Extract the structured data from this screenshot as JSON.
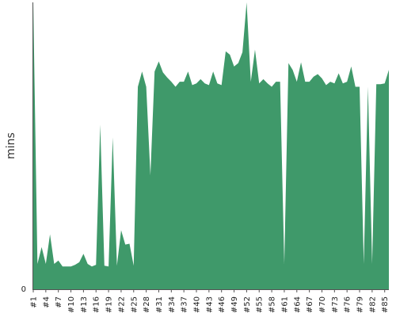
{
  "chart_data": {
    "type": "area",
    "title": "",
    "xlabel": "",
    "ylabel": "mins",
    "color": "#3f996a",
    "yticks": [
      0
    ],
    "ylim": [
      0,
      34
    ],
    "x": [
      "#1",
      "#2",
      "#3",
      "#4",
      "#5",
      "#6",
      "#7",
      "#8",
      "#9",
      "#10",
      "#11",
      "#12",
      "#13",
      "#14",
      "#15",
      "#16",
      "#17",
      "#18",
      "#19",
      "#20",
      "#21",
      "#22",
      "#23",
      "#24",
      "#25",
      "#26",
      "#27",
      "#28",
      "#29",
      "#30",
      "#31",
      "#32",
      "#33",
      "#34",
      "#35",
      "#36",
      "#37",
      "#38",
      "#39",
      "#40",
      "#41",
      "#42",
      "#43",
      "#44",
      "#45",
      "#46",
      "#47",
      "#48",
      "#49",
      "#50",
      "#51",
      "#52",
      "#53",
      "#54",
      "#55",
      "#56",
      "#57",
      "#58",
      "#59",
      "#60",
      "#61",
      "#62",
      "#63",
      "#64",
      "#65",
      "#66",
      "#67",
      "#68",
      "#69",
      "#70",
      "#71",
      "#72",
      "#73",
      "#74",
      "#75",
      "#76",
      "#77",
      "#78",
      "#79",
      "#80",
      "#81",
      "#82",
      "#83",
      "#84",
      "#85",
      "#86"
    ],
    "xtick_labels": [
      "#1",
      "#4",
      "#7",
      "#10",
      "#13",
      "#16",
      "#19",
      "#22",
      "#25",
      "#28",
      "#31",
      "#34",
      "#37",
      "#40",
      "#43",
      "#46",
      "#49",
      "#52",
      "#55",
      "#58",
      "#61",
      "#64",
      "#67",
      "#70",
      "#73",
      "#76",
      "#79",
      "#82",
      "#85"
    ],
    "values": [
      36,
      3.0,
      5.0,
      3.0,
      6.5,
      3.0,
      3.4,
      2.7,
      2.7,
      2.7,
      2.9,
      3.2,
      4.2,
      3.0,
      2.7,
      2.9,
      19.5,
      2.8,
      2.7,
      18.0,
      2.8,
      7.0,
      5.3,
      5.4,
      2.8,
      24.0,
      25.8,
      24.0,
      13.5,
      25.8,
      27.0,
      25.7,
      25.1,
      24.6,
      24.0,
      24.6,
      24.6,
      25.8,
      24.2,
      24.4,
      24.9,
      24.4,
      24.2,
      25.8,
      24.4,
      24.2,
      28.2,
      27.8,
      26.4,
      26.8,
      28.1,
      34.3,
      24.6,
      28.4,
      24.4,
      24.9,
      24.4,
      24.0,
      24.6,
      24.6,
      3.0,
      26.8,
      26.0,
      24.6,
      26.9,
      24.6,
      24.6,
      25.2,
      25.5,
      25.0,
      24.2,
      24.6,
      24.4,
      25.6,
      24.4,
      24.6,
      26.4,
      24.0,
      24.0,
      3.0,
      24.0,
      3.0,
      24.3,
      24.3,
      24.4,
      26.0
    ]
  }
}
